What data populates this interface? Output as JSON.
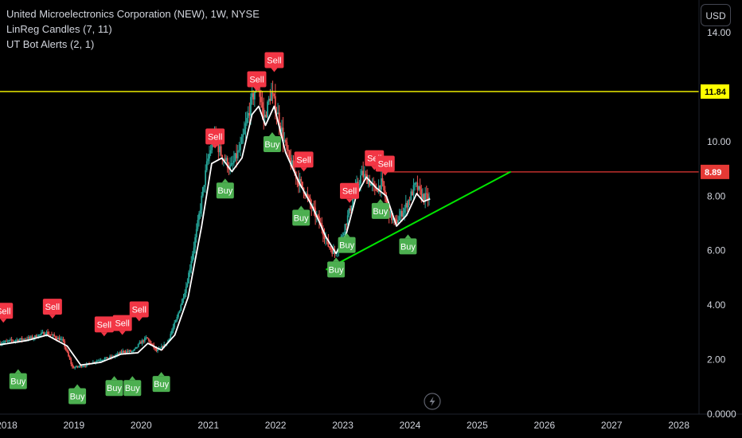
{
  "legend": {
    "title": "United Microelectronics Corporation (NEW), 1W, NYSE",
    "indicator1": "LinReg Candles (7, 11)",
    "indicator2": "UT Bot Alerts (2, 1)"
  },
  "currency_button": "USD",
  "colors": {
    "background": "#000000",
    "up": "#26a69a",
    "down": "#ef5350",
    "smooth": "#ffffff",
    "hline": "#ffff00",
    "resistance": "#e53935",
    "trendline": "#00e600",
    "buy": "#4caf50",
    "sell": "#f23645"
  },
  "chart_data": {
    "type": "candlestick",
    "x_range": [
      2017.9,
      2028.3
    ],
    "y_range": [
      0,
      15.2
    ],
    "y_ticks": [
      {
        "value": 0,
        "label": "0.0000"
      },
      {
        "value": 2,
        "label": "2.00"
      },
      {
        "value": 4,
        "label": "4.00"
      },
      {
        "value": 6,
        "label": "6.00"
      },
      {
        "value": 8,
        "label": "8.00"
      },
      {
        "value": 10,
        "label": "10.00"
      },
      {
        "value": 14,
        "label": "14.00"
      }
    ],
    "x_ticks": [
      {
        "value": 2018,
        "label": "2018"
      },
      {
        "value": 2019,
        "label": "2019"
      },
      {
        "value": 2020,
        "label": "2020"
      },
      {
        "value": 2021,
        "label": "2021"
      },
      {
        "value": 2022,
        "label": "2022"
      },
      {
        "value": 2023,
        "label": "2023"
      },
      {
        "value": 2024,
        "label": "2024"
      },
      {
        "value": 2025,
        "label": "2025"
      },
      {
        "value": 2026,
        "label": "2026"
      },
      {
        "value": 2027,
        "label": "2027"
      },
      {
        "value": 2028,
        "label": "2028"
      }
    ],
    "price_path": [
      [
        2017.9,
        2.6
      ],
      [
        2018.1,
        2.7
      ],
      [
        2018.4,
        2.8
      ],
      [
        2018.6,
        3.0
      ],
      [
        2018.85,
        2.7
      ],
      [
        2019.0,
        1.7
      ],
      [
        2019.2,
        1.8
      ],
      [
        2019.4,
        2.0
      ],
      [
        2019.6,
        2.1
      ],
      [
        2019.75,
        2.3
      ],
      [
        2019.9,
        2.3
      ],
      [
        2020.0,
        2.6
      ],
      [
        2020.1,
        2.8
      ],
      [
        2020.25,
        2.3
      ],
      [
        2020.4,
        2.6
      ],
      [
        2020.55,
        3.5
      ],
      [
        2020.7,
        4.8
      ],
      [
        2020.85,
        6.8
      ],
      [
        2021.0,
        9.2
      ],
      [
        2021.1,
        10.2
      ],
      [
        2021.2,
        9.6
      ],
      [
        2021.35,
        9.0
      ],
      [
        2021.5,
        9.8
      ],
      [
        2021.65,
        11.4
      ],
      [
        2021.75,
        12.2
      ],
      [
        2021.85,
        10.8
      ],
      [
        2021.95,
        11.8
      ],
      [
        2022.05,
        11.0
      ],
      [
        2022.2,
        9.5
      ],
      [
        2022.35,
        8.6
      ],
      [
        2022.45,
        8.2
      ],
      [
        2022.55,
        7.6
      ],
      [
        2022.7,
        6.9
      ],
      [
        2022.8,
        6.2
      ],
      [
        2022.9,
        5.9
      ],
      [
        2023.0,
        6.5
      ],
      [
        2023.1,
        7.3
      ],
      [
        2023.2,
        8.2
      ],
      [
        2023.3,
        8.8
      ],
      [
        2023.4,
        8.6
      ],
      [
        2023.5,
        8.2
      ],
      [
        2023.6,
        8.5
      ],
      [
        2023.7,
        7.4
      ],
      [
        2023.8,
        7.0
      ],
      [
        2023.95,
        7.6
      ],
      [
        2024.1,
        8.4
      ],
      [
        2024.2,
        8.0
      ],
      [
        2024.3,
        7.9
      ]
    ],
    "smooth_line": [
      [
        2017.9,
        2.55
      ],
      [
        2018.3,
        2.7
      ],
      [
        2018.6,
        2.9
      ],
      [
        2018.9,
        2.5
      ],
      [
        2019.1,
        1.8
      ],
      [
        2019.4,
        1.9
      ],
      [
        2019.7,
        2.2
      ],
      [
        2019.95,
        2.25
      ],
      [
        2020.1,
        2.6
      ],
      [
        2020.3,
        2.35
      ],
      [
        2020.5,
        2.9
      ],
      [
        2020.7,
        4.3
      ],
      [
        2020.9,
        6.9
      ],
      [
        2021.05,
        9.2
      ],
      [
        2021.2,
        9.4
      ],
      [
        2021.35,
        8.9
      ],
      [
        2021.5,
        9.4
      ],
      [
        2021.65,
        11.0
      ],
      [
        2021.75,
        11.3
      ],
      [
        2021.85,
        10.6
      ],
      [
        2021.98,
        11.3
      ],
      [
        2022.15,
        9.6
      ],
      [
        2022.35,
        8.5
      ],
      [
        2022.55,
        7.6
      ],
      [
        2022.75,
        6.5
      ],
      [
        2022.9,
        5.9
      ],
      [
        2023.05,
        6.6
      ],
      [
        2023.2,
        8.0
      ],
      [
        2023.35,
        8.7
      ],
      [
        2023.5,
        8.3
      ],
      [
        2023.65,
        8.0
      ],
      [
        2023.8,
        6.9
      ],
      [
        2023.95,
        7.3
      ],
      [
        2024.1,
        8.1
      ],
      [
        2024.2,
        7.8
      ],
      [
        2024.3,
        7.9
      ]
    ],
    "signals": [
      {
        "type": "Sell",
        "x": 2017.95,
        "y": 3.5,
        "label": "Sell"
      },
      {
        "type": "Sell",
        "x": 2018.68,
        "y": 3.65,
        "label": "Sell"
      },
      {
        "type": "Sell",
        "x": 2019.45,
        "y": 3.0,
        "label": "Sell"
      },
      {
        "type": "Sell",
        "x": 2019.72,
        "y": 3.05,
        "label": "Sell"
      },
      {
        "type": "Sell",
        "x": 2019.97,
        "y": 3.55,
        "label": "Sell"
      },
      {
        "type": "Sell",
        "x": 2021.1,
        "y": 9.9,
        "label": "Sell"
      },
      {
        "type": "Sell",
        "x": 2021.72,
        "y": 12.0,
        "label": "Sell"
      },
      {
        "type": "Sell",
        "x": 2021.98,
        "y": 12.7,
        "label": "Sell"
      },
      {
        "type": "Sell",
        "x": 2022.42,
        "y": 9.05,
        "label": "Sell"
      },
      {
        "type": "Sell",
        "x": 2023.1,
        "y": 7.9,
        "label": "Sell"
      },
      {
        "type": "Sell",
        "x": 2023.47,
        "y": 9.1,
        "label": "Sell"
      },
      {
        "type": "Sell",
        "x": 2023.63,
        "y": 8.9,
        "label": "Sell"
      },
      {
        "type": "Buy",
        "x": 2018.17,
        "y": 1.5,
        "label": "Buy"
      },
      {
        "type": "Buy",
        "x": 2019.05,
        "y": 0.95,
        "label": "Buy"
      },
      {
        "type": "Buy",
        "x": 2019.6,
        "y": 1.25,
        "label": "Buy"
      },
      {
        "type": "Buy",
        "x": 2019.87,
        "y": 1.25,
        "label": "Buy"
      },
      {
        "type": "Buy",
        "x": 2020.3,
        "y": 1.4,
        "label": "Buy"
      },
      {
        "type": "Buy",
        "x": 2021.25,
        "y": 8.5,
        "label": "Buy"
      },
      {
        "type": "Buy",
        "x": 2021.95,
        "y": 10.2,
        "label": "Buy"
      },
      {
        "type": "Buy",
        "x": 2022.38,
        "y": 7.5,
        "label": "Buy"
      },
      {
        "type": "Buy",
        "x": 2022.9,
        "y": 5.6,
        "label": "Buy"
      },
      {
        "type": "Buy",
        "x": 2023.06,
        "y": 6.5,
        "label": "Buy"
      },
      {
        "type": "Buy",
        "x": 2023.56,
        "y": 7.75,
        "label": "Buy"
      },
      {
        "type": "Buy",
        "x": 2023.97,
        "y": 6.45,
        "label": "Buy"
      }
    ],
    "hline": {
      "value": 11.84,
      "label": "11.84"
    },
    "resistance": {
      "value": 8.89,
      "x_start": 2023.6,
      "label": "8.89"
    },
    "trendline": [
      [
        2022.75,
        5.3
      ],
      [
        2025.5,
        8.9
      ]
    ]
  }
}
